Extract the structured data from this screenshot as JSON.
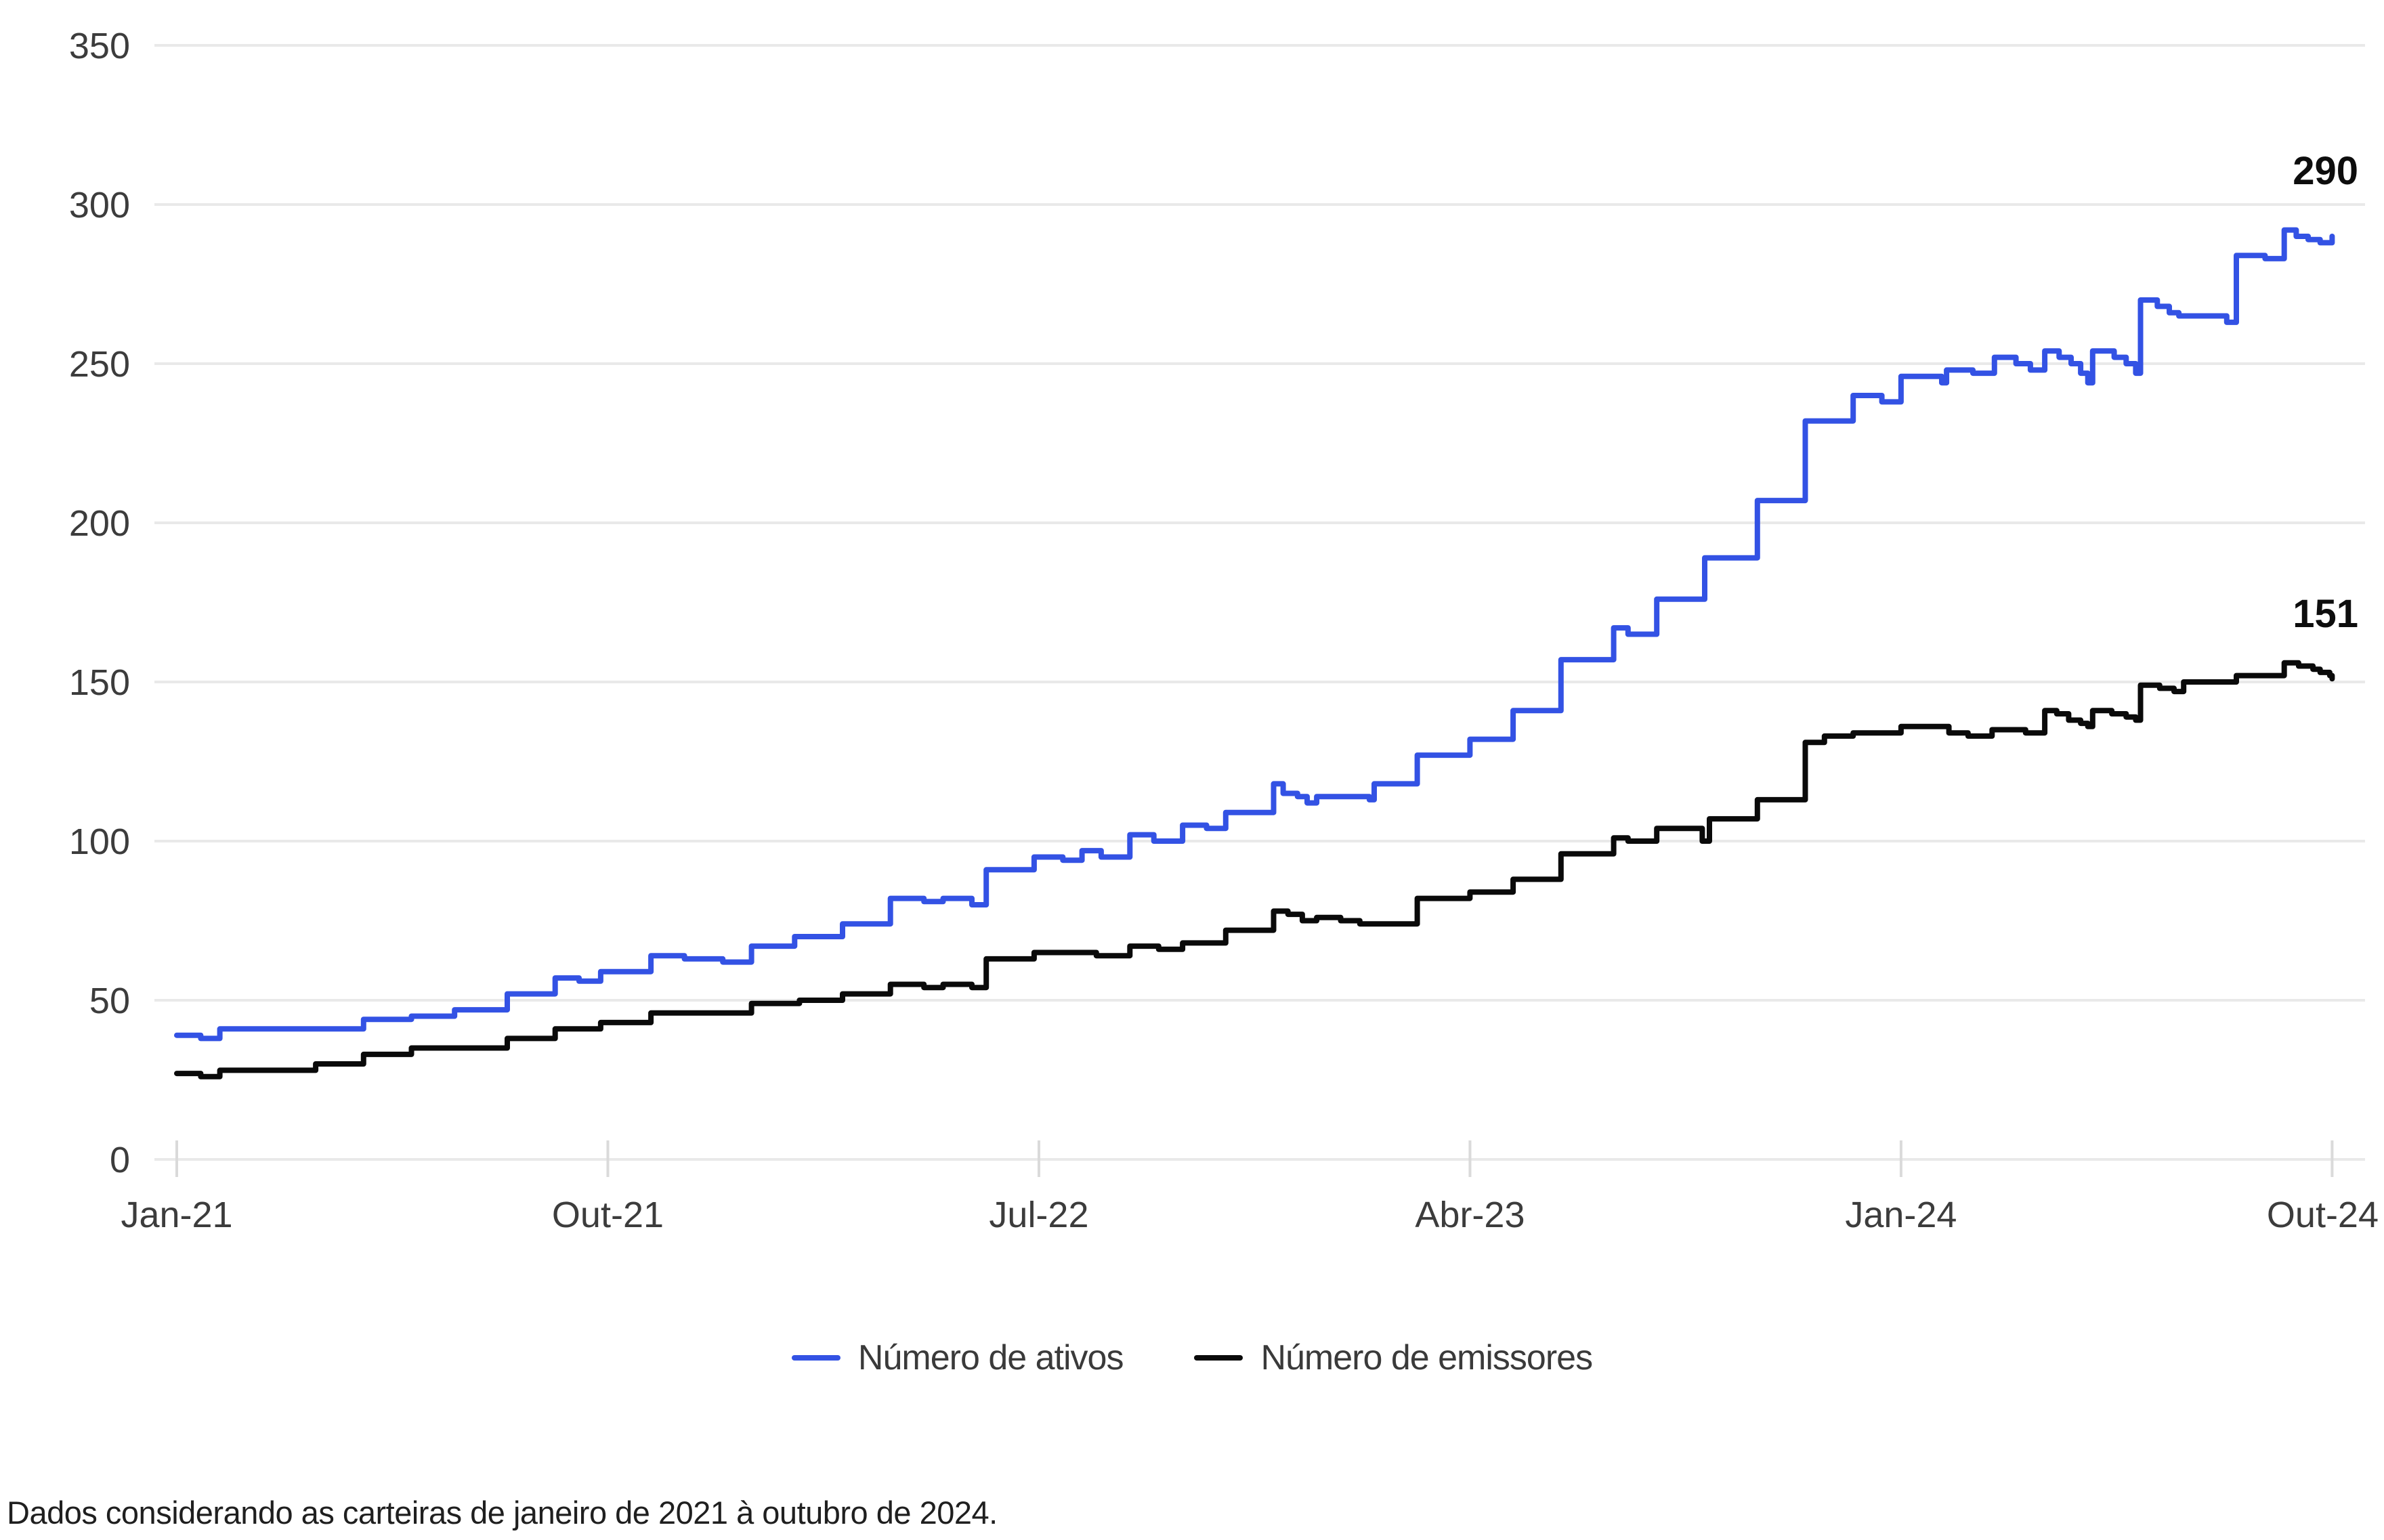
{
  "chart_data": {
    "type": "line",
    "title": "",
    "xlabel": "",
    "ylabel": "",
    "grid": true,
    "legend_position": "bottom",
    "x_axis": {
      "unit": "months since Jan-21",
      "tick_labels": [
        "Jan-21",
        "Out-21",
        "Jul-22",
        "Abr-23",
        "Jan-24",
        "Out-24"
      ],
      "tick_positions_months": [
        0,
        9,
        18,
        27,
        36,
        45
      ]
    },
    "y_axis": {
      "min": 0,
      "max": 350,
      "tick_step": 50,
      "tick_labels": [
        "0",
        "50",
        "100",
        "150",
        "200",
        "250",
        "300",
        "350"
      ]
    },
    "series": [
      {
        "name": "Número de ativos",
        "color": "#3352e4",
        "end_label": "290",
        "points": [
          [
            0.0,
            39
          ],
          [
            0.5,
            38
          ],
          [
            0.9,
            41
          ],
          [
            3.9,
            44
          ],
          [
            4.9,
            45
          ],
          [
            5.8,
            47
          ],
          [
            6.9,
            52
          ],
          [
            7.9,
            57
          ],
          [
            8.4,
            56
          ],
          [
            8.85,
            59
          ],
          [
            9.9,
            64
          ],
          [
            10.6,
            63
          ],
          [
            11.4,
            62
          ],
          [
            12.0,
            67
          ],
          [
            12.9,
            70
          ],
          [
            13.9,
            74
          ],
          [
            14.9,
            82
          ],
          [
            15.6,
            81
          ],
          [
            16.0,
            82
          ],
          [
            16.6,
            80
          ],
          [
            16.9,
            91
          ],
          [
            17.9,
            95
          ],
          [
            18.5,
            94
          ],
          [
            18.9,
            97
          ],
          [
            19.3,
            95
          ],
          [
            19.9,
            102
          ],
          [
            20.4,
            100
          ],
          [
            21.0,
            105
          ],
          [
            21.5,
            104
          ],
          [
            21.9,
            109
          ],
          [
            22.9,
            118
          ],
          [
            23.1,
            115
          ],
          [
            23.4,
            114
          ],
          [
            23.6,
            112
          ],
          [
            23.8,
            114
          ],
          [
            24.9,
            113
          ],
          [
            25.0,
            118
          ],
          [
            25.9,
            127
          ],
          [
            27.0,
            132
          ],
          [
            27.9,
            141
          ],
          [
            28.9,
            157
          ],
          [
            30.0,
            167
          ],
          [
            30.3,
            165
          ],
          [
            30.9,
            176
          ],
          [
            31.9,
            189
          ],
          [
            33.0,
            207
          ],
          [
            34.0,
            232
          ],
          [
            35.0,
            240
          ],
          [
            35.6,
            238
          ],
          [
            36.0,
            246
          ],
          [
            36.85,
            244
          ],
          [
            36.95,
            248
          ],
          [
            37.5,
            247
          ],
          [
            37.95,
            252
          ],
          [
            38.4,
            250
          ],
          [
            38.7,
            248
          ],
          [
            39.0,
            254
          ],
          [
            39.3,
            252
          ],
          [
            39.55,
            250
          ],
          [
            39.75,
            247
          ],
          [
            39.9,
            244
          ],
          [
            40.0,
            254
          ],
          [
            40.45,
            252
          ],
          [
            40.7,
            250
          ],
          [
            40.9,
            247
          ],
          [
            41.0,
            270
          ],
          [
            41.35,
            268
          ],
          [
            41.6,
            266
          ],
          [
            41.8,
            265
          ],
          [
            42.5,
            265
          ],
          [
            42.8,
            263
          ],
          [
            43.0,
            284
          ],
          [
            43.6,
            283
          ],
          [
            44.0,
            292
          ],
          [
            44.25,
            290
          ],
          [
            44.5,
            289
          ],
          [
            44.75,
            288
          ],
          [
            45.0,
            290
          ]
        ]
      },
      {
        "name": "Número de emissores",
        "color": "#0a0a0a",
        "end_label": "151",
        "points": [
          [
            0.0,
            27
          ],
          [
            0.5,
            26
          ],
          [
            0.9,
            28
          ],
          [
            2.9,
            30
          ],
          [
            3.9,
            33
          ],
          [
            4.9,
            35
          ],
          [
            6.9,
            38
          ],
          [
            7.9,
            41
          ],
          [
            8.85,
            43
          ],
          [
            9.9,
            46
          ],
          [
            12.0,
            49
          ],
          [
            13.0,
            50
          ],
          [
            13.9,
            52
          ],
          [
            14.9,
            55
          ],
          [
            15.6,
            54
          ],
          [
            16.0,
            55
          ],
          [
            16.6,
            54
          ],
          [
            16.9,
            63
          ],
          [
            17.9,
            65
          ],
          [
            19.2,
            64
          ],
          [
            19.9,
            67
          ],
          [
            20.5,
            66
          ],
          [
            21.0,
            68
          ],
          [
            21.9,
            72
          ],
          [
            22.9,
            78
          ],
          [
            23.2,
            77
          ],
          [
            23.5,
            75
          ],
          [
            23.8,
            76
          ],
          [
            24.3,
            75
          ],
          [
            24.7,
            74
          ],
          [
            25.9,
            82
          ],
          [
            27.0,
            84
          ],
          [
            27.9,
            88
          ],
          [
            28.9,
            96
          ],
          [
            30.0,
            101
          ],
          [
            30.3,
            100
          ],
          [
            30.9,
            104
          ],
          [
            31.85,
            100
          ],
          [
            32.0,
            107
          ],
          [
            33.0,
            113
          ],
          [
            34.0,
            131
          ],
          [
            34.4,
            133
          ],
          [
            35.0,
            134
          ],
          [
            36.0,
            136
          ],
          [
            37.0,
            134
          ],
          [
            37.4,
            133
          ],
          [
            37.9,
            135
          ],
          [
            38.6,
            134
          ],
          [
            39.0,
            141
          ],
          [
            39.25,
            140
          ],
          [
            39.5,
            138
          ],
          [
            39.75,
            137
          ],
          [
            39.9,
            136
          ],
          [
            40.0,
            141
          ],
          [
            40.4,
            140
          ],
          [
            40.7,
            139
          ],
          [
            40.9,
            138
          ],
          [
            41.0,
            149
          ],
          [
            41.4,
            148
          ],
          [
            41.7,
            147
          ],
          [
            41.9,
            150
          ],
          [
            43.0,
            152
          ],
          [
            44.0,
            156
          ],
          [
            44.3,
            155
          ],
          [
            44.6,
            154
          ],
          [
            44.75,
            153
          ],
          [
            44.95,
            152
          ],
          [
            45.0,
            151
          ]
        ]
      }
    ],
    "colors": {
      "grid": "#e9e9e9",
      "tick_mark": "#dadada",
      "axis_text": "#3c3c3c",
      "end_label_text": "#0d0d0d"
    }
  },
  "legend": {
    "items": [
      {
        "label": "Número de ativos"
      },
      {
        "label": "Número de emissores"
      }
    ]
  },
  "footer": {
    "note": "Dados considerando as carteiras de janeiro de 2021 à outubro de 2024."
  }
}
